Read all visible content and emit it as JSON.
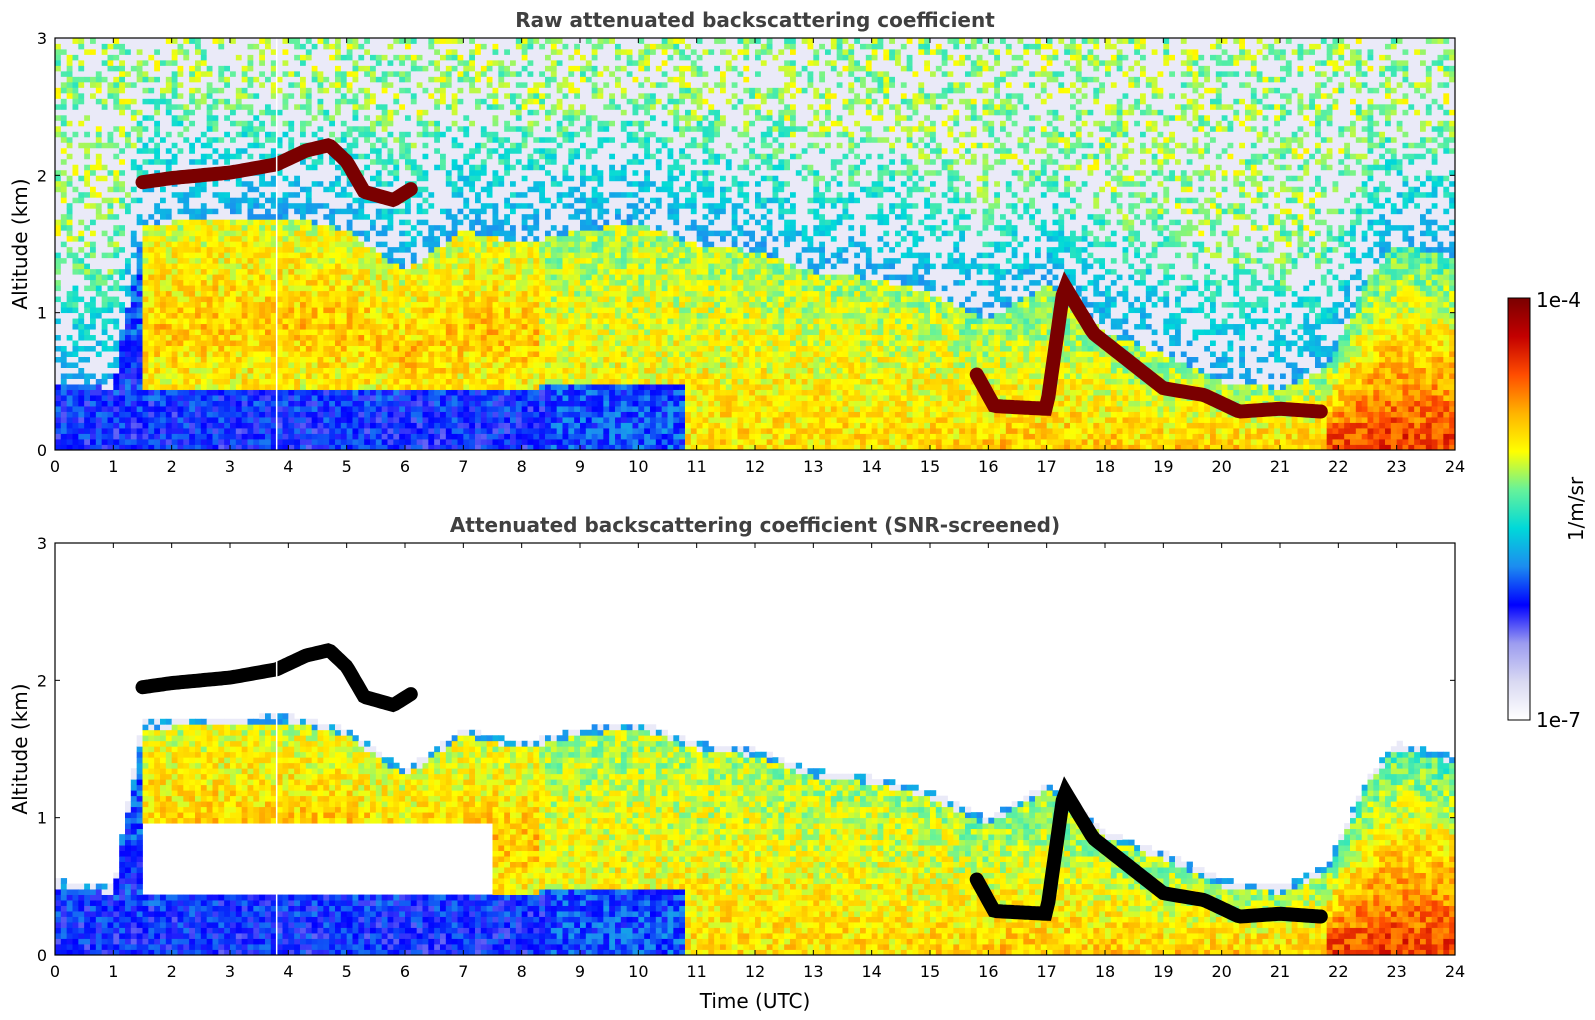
{
  "colors": {
    "colormap": [
      "#ffffff",
      "#d9d9f2",
      "#9c9cf0",
      "#0000ff",
      "#1c8cf0",
      "#00d9d9",
      "#66f29a",
      "#ffff00",
      "#ffb300",
      "#ff4d00",
      "#c30000",
      "#7a0000"
    ],
    "screened_black": "#000000"
  },
  "chart_data": [
    {
      "type": "heatmap",
      "title": "Raw attenuated backscattering coefficient",
      "xlabel": "",
      "ylabel": "Altitude (km)",
      "xlim": [
        0,
        24
      ],
      "ylim": [
        0,
        3
      ],
      "xticks": [
        "0",
        "1",
        "2",
        "3",
        "4",
        "5",
        "6",
        "7",
        "8",
        "9",
        "10",
        "11",
        "12",
        "13",
        "14",
        "15",
        "16",
        "17",
        "18",
        "19",
        "20",
        "21",
        "22",
        "23",
        "24"
      ],
      "yticks": [
        "0",
        "1",
        "2",
        "3"
      ],
      "features": {
        "cloud_layer_km": [
          [
            1.5,
            1.95
          ],
          [
            2,
            1.98
          ],
          [
            3,
            2.02
          ],
          [
            3.8,
            2.08
          ],
          [
            4.3,
            2.18
          ],
          [
            4.7,
            2.22
          ],
          [
            5.0,
            2.1
          ],
          [
            5.3,
            1.88
          ],
          [
            5.8,
            1.82
          ],
          [
            6.1,
            1.9
          ]
        ],
        "low_cloud_km": [
          [
            15.8,
            0.55
          ],
          [
            16.1,
            0.32
          ],
          [
            17.0,
            0.3
          ],
          [
            17.3,
            1.2
          ],
          [
            17.8,
            0.85
          ],
          [
            18.4,
            0.65
          ],
          [
            19.0,
            0.45
          ],
          [
            19.7,
            0.4
          ],
          [
            20.3,
            0.28
          ],
          [
            21.0,
            0.3
          ],
          [
            21.7,
            0.28
          ]
        ]
      }
    },
    {
      "type": "heatmap",
      "title": "Attenuated backscattering coefficient (SNR-screened)",
      "xlabel": "Time (UTC)",
      "ylabel": "Altitude (km)",
      "xlim": [
        0,
        24
      ],
      "ylim": [
        0,
        3
      ],
      "xticks": [
        "0",
        "1",
        "2",
        "3",
        "4",
        "5",
        "6",
        "7",
        "8",
        "9",
        "10",
        "11",
        "12",
        "13",
        "14",
        "15",
        "16",
        "17",
        "18",
        "19",
        "20",
        "21",
        "22",
        "23",
        "24"
      ],
      "yticks": [
        "0",
        "1",
        "2",
        "3"
      ]
    }
  ],
  "colorbar": {
    "label": "1/m/sr",
    "max_label": "1e-4",
    "min_label": "1e-7",
    "range": [
      1e-07,
      0.0001
    ],
    "scale": "log"
  }
}
